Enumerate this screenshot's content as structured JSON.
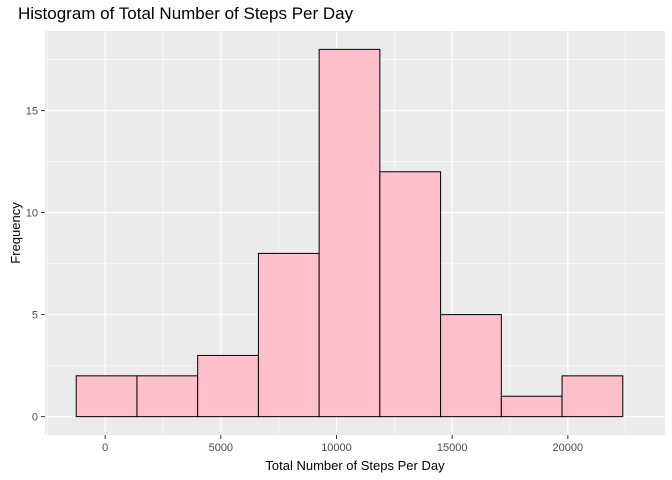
{
  "chart_data": {
    "type": "bar",
    "title": "Histogram of Total Number of Steps Per Day",
    "xlabel": "Total Number of Steps Per Day",
    "ylabel": "Frequency",
    "bin_edges": [
      -1250,
      1375,
      4000,
      6625,
      9250,
      11875,
      14500,
      17125,
      19750,
      22375
    ],
    "values": [
      2,
      2,
      3,
      8,
      18,
      12,
      5,
      1,
      2
    ],
    "xlim": [
      -2600,
      24200
    ],
    "ylim": [
      -0.9,
      18.9
    ],
    "x_ticks": [
      0,
      5000,
      10000,
      15000,
      20000
    ],
    "x_tick_labels": [
      "0",
      "5000",
      "10000",
      "15000",
      "20000"
    ],
    "y_ticks": [
      0,
      5,
      10,
      15
    ],
    "y_tick_labels": [
      "0",
      "5",
      "10",
      "15"
    ],
    "grid": true,
    "colors": {
      "bar_fill": "#FFC0CB",
      "bar_stroke": "#000000",
      "panel_bg": "#EBEBEB",
      "grid": "#FFFFFF"
    }
  }
}
